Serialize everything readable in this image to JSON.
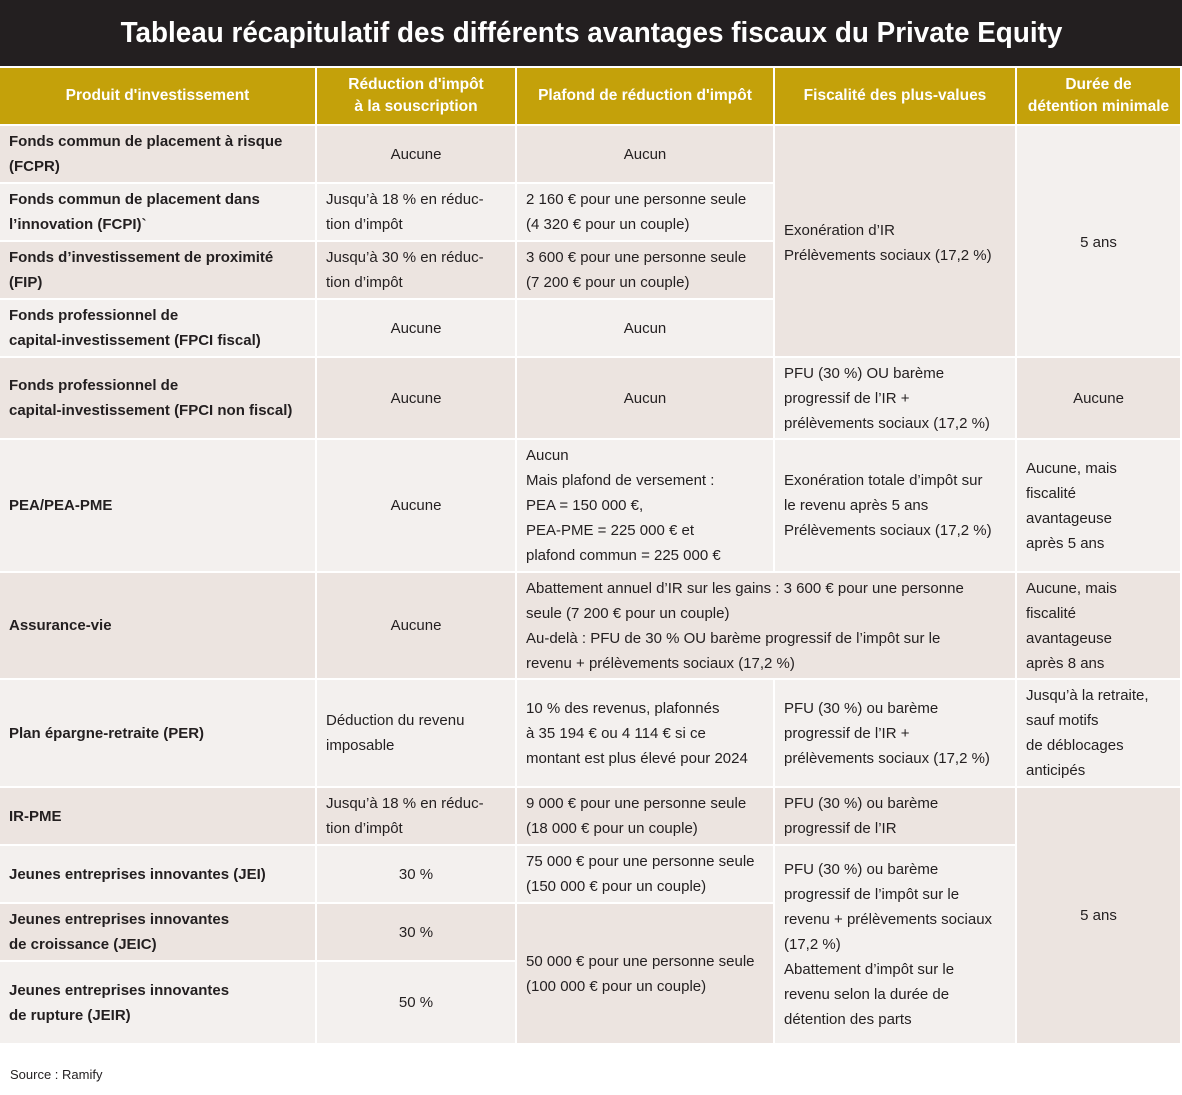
{
  "title": "Tableau récapitulatif des différents avantages fiscaux du Private Equity",
  "headers": {
    "product": "Produit d'investissement",
    "reduction": "Réduction d'impôt\nà la souscription",
    "ceiling": "Plafond de réduction d'impôt",
    "capital_gains": "Fiscalité des plus-values",
    "holding": "Durée de\ndétention minimale"
  },
  "rows": [
    {
      "product": "Fonds commun de placement à risque\n(FCPR)",
      "reduction": "Aucune",
      "ceiling": "Aucun"
    },
    {
      "product": "Fonds commun de placement dans\nl’innovation (FCPI)`",
      "reduction": "Jusqu’à 18 % en réduc-\ntion d’impôt",
      "ceiling": "2 160 € pour une personne seule\n(4 320 € pour un couple)"
    },
    {
      "product": "Fonds d’investissement de proximité\n(FIP)",
      "reduction": "Jusqu’à 30 % en réduc-\ntion d’impôt",
      "ceiling": "3 600 € pour une personne seule\n(7 200 € pour un couple)"
    },
    {
      "product": "Fonds professionnel de\ncapital-investissement (FPCI fiscal)",
      "reduction": "Aucune",
      "ceiling": "Aucun"
    },
    {
      "product": "Fonds professionnel de\ncapital-investissement (FPCI non fiscal)",
      "reduction": "Aucune",
      "ceiling": "Aucun",
      "capital_gains": "PFU (30 %) OU barème\nprogressif de l’IR +\nprélèvements sociaux (17,2 %)",
      "holding": "Aucune"
    },
    {
      "product": "PEA/PEA-PME",
      "reduction": "Aucune",
      "ceiling": "Aucun\nMais plafond de versement :\nPEA = 150 000 €,\nPEA-PME = 225 000 € et\nplafond commun = 225 000 €",
      "capital_gains": "Exonération totale d’impôt sur\nle revenu après 5 ans\nPrélèvements sociaux (17,2 %)",
      "holding": "Aucune, mais\nfiscalité\navantageuse\naprès 5 ans"
    },
    {
      "product": "Assurance-vie",
      "reduction": "Aucune",
      "ceiling_and_gains": "Abattement annuel d’IR sur les gains : 3 600 € pour une personne\nseule (7 200 € pour un couple)\nAu-delà : PFU de 30 % OU barème progressif de l’impôt sur le\nrevenu + prélèvements sociaux (17,2 %)",
      "holding": "Aucune, mais\nfiscalité\navantageuse\naprès 8 ans"
    },
    {
      "product": "Plan épargne-retraite (PER)",
      "reduction": "Déduction du revenu\nimposable",
      "ceiling": "10 % des revenus, plafonnés\nà 35 194 € ou 4 114 € si ce\nmontant est plus élevé pour 2024",
      "capital_gains": "PFU (30 %) ou barème\nprogressif de l’IR +\nprélèvements sociaux (17,2 %)",
      "holding": "Jusqu’à la retraite,\nsauf motifs\nde déblocages\nanticipés"
    },
    {
      "product": "IR-PME",
      "reduction": "Jusqu’à 18 % en réduc-\ntion d’impôt",
      "ceiling": "9 000 € pour une personne seule\n(18 000 € pour un couple)",
      "capital_gains": "PFU (30 %) ou barème\nprogressif de l’IR"
    },
    {
      "product": "Jeunes entreprises innovantes (JEI)",
      "reduction": "30 %",
      "ceiling": "75 000 € pour une personne seule\n(150 000 € pour un couple)"
    },
    {
      "product": "Jeunes entreprises innovantes\nde croissance (JEIC)",
      "reduction": "30 %"
    },
    {
      "product": "Jeunes entreprises innovantes\nde rupture (JEIR)",
      "reduction": "50 %"
    }
  ],
  "merged": {
    "gains_fcpr_fpci": "Exonération d’IR\nPrélèvements sociaux (17,2 %)",
    "holding_fcpr_fpci": "5 ans",
    "ceiling_jeic_jeir": "50 000 € pour une personne seule\n(100 000 € pour un couple)",
    "gains_jei_jeir": "PFU (30 %) ou barème\nprogressif de l’impôt sur le\nrevenu + prélèvements sociaux\n(17,2 %)\nAbattement d’impôt sur le\nrevenu selon la durée de\ndétention des parts",
    "holding_irpme_jeir": "5 ans"
  },
  "source": "Source : Ramify"
}
